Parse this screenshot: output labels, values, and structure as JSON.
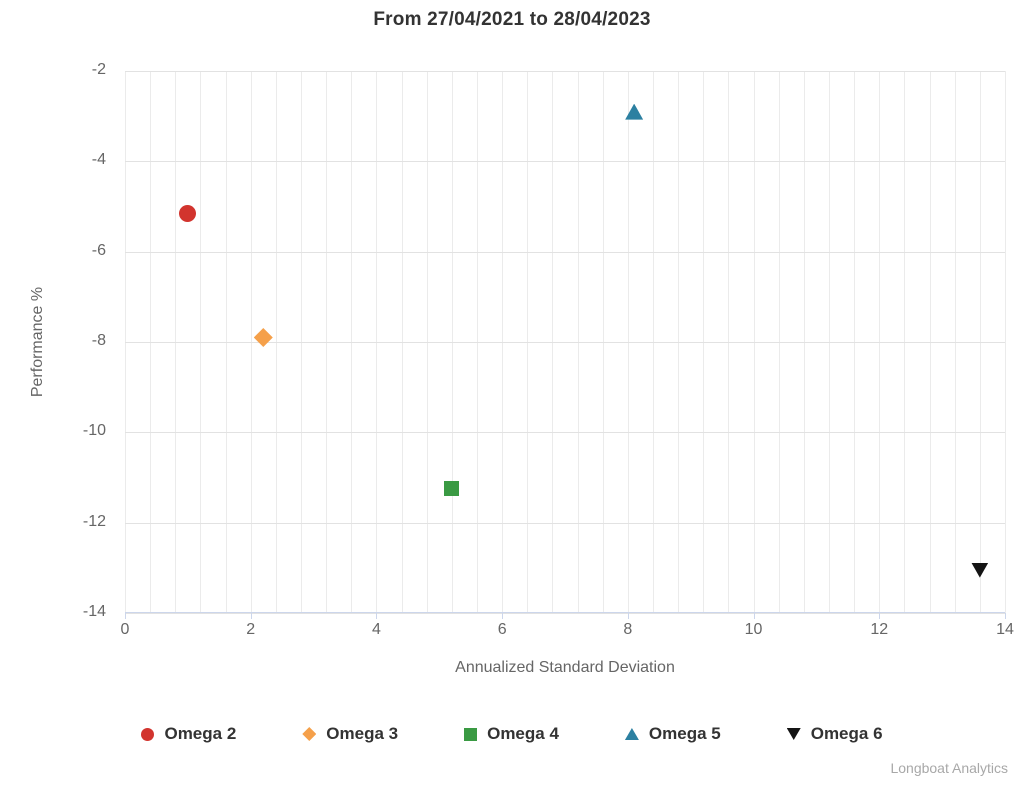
{
  "chart_data": {
    "type": "scatter",
    "title": "From 27/04/2021 to 28/04/2023",
    "xlabel": "Annualized Standard Deviation",
    "ylabel": "Performance %",
    "xlim": [
      0,
      14
    ],
    "ylim": [
      -14,
      -2
    ],
    "xticks": [
      0,
      2,
      4,
      6,
      8,
      10,
      12,
      14
    ],
    "yticks": [
      -2,
      -4,
      -6,
      -8,
      -10,
      -12,
      -14
    ],
    "minor_x_interval": 0.4,
    "grid": true,
    "legend_position": "bottom-center",
    "series": [
      {
        "name": "Omega 2",
        "marker": "circle",
        "color": "#d2342e",
        "points": [
          {
            "x": 1.0,
            "y": -5.15
          }
        ]
      },
      {
        "name": "Omega 3",
        "marker": "diamond",
        "color": "#f5a04a",
        "points": [
          {
            "x": 2.2,
            "y": -7.9
          }
        ]
      },
      {
        "name": "Omega 4",
        "marker": "square",
        "color": "#3a9a43",
        "points": [
          {
            "x": 5.2,
            "y": -11.25
          }
        ]
      },
      {
        "name": "Omega 5",
        "marker": "triangle-up",
        "color": "#2c80a1",
        "points": [
          {
            "x": 8.1,
            "y": -2.9
          }
        ]
      },
      {
        "name": "Omega 6",
        "marker": "triangle-down",
        "color": "#141414",
        "points": [
          {
            "x": 13.6,
            "y": -13.05
          }
        ]
      }
    ],
    "colors": {
      "axis_line": "#ccd6eb",
      "tick_mark": "#ccd6eb",
      "grid_major": "#e2e2e2",
      "grid_minor": "#ebebeb",
      "tick_text": "#666666",
      "axis_title_text": "#666666",
      "title_text": "#333333",
      "legend_text": "#333333",
      "credits_text": "#a8a8a8"
    },
    "credits": "Longboat Analytics"
  }
}
